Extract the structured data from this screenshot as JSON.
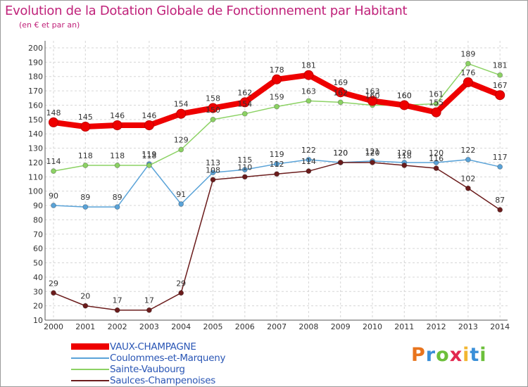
{
  "title": "Evolution de la Dotation Globale de Fonctionnement par Habitant",
  "subtitle": "(en € et par an)",
  "brand": {
    "text": "Proxiti",
    "letter_colors": [
      "#e8741d",
      "#3a8fd8",
      "#6cbf3a",
      "#e2284f",
      "#f2b632",
      "#3a8fd8",
      "#6cbf3a"
    ]
  },
  "chart_data": {
    "type": "line",
    "title": "Evolution de la Dotation Globale de Fonctionnement par Habitant",
    "ylabel": "(en € et par an)",
    "xlabel": "",
    "categories": [
      "2000",
      "2001",
      "2002",
      "2003",
      "2004",
      "2005",
      "2006",
      "2007",
      "2008",
      "2009",
      "2010",
      "2011",
      "2012",
      "2013",
      "2014"
    ],
    "ylim": [
      10,
      200
    ],
    "yticks": [
      "10",
      "20",
      "30",
      "40",
      "50",
      "60",
      "70",
      "80",
      "90",
      "100",
      "110",
      "120",
      "130",
      "140",
      "150",
      "160",
      "170",
      "180",
      "190",
      "200"
    ],
    "grid": true,
    "legend": "bottom-left",
    "series": [
      {
        "name": "VAUX-CHAMPAGNE",
        "color": "#ee0000",
        "values": [
          148,
          145,
          146,
          146,
          154,
          158,
          162,
          178,
          181,
          169,
          163,
          160,
          155,
          176,
          167
        ]
      },
      {
        "name": "Coulommes-et-Marqueny",
        "color": "#5aa3d8",
        "values": [
          90,
          89,
          89,
          119,
          91,
          113,
          115,
          119,
          122,
          120,
          121,
          120,
          120,
          122,
          117
        ]
      },
      {
        "name": "Sainte-Vaubourg",
        "color": "#8cd264",
        "values": [
          114,
          118,
          118,
          118,
          129,
          150,
          154,
          159,
          163,
          162,
          160,
          160,
          161,
          189,
          181
        ]
      },
      {
        "name": "Saulces-Champenoises",
        "color": "#6b1c1c",
        "values": [
          29,
          20,
          17,
          17,
          29,
          108,
          110,
          112,
          114,
          120,
          120,
          118,
          116,
          102,
          87
        ]
      }
    ]
  }
}
